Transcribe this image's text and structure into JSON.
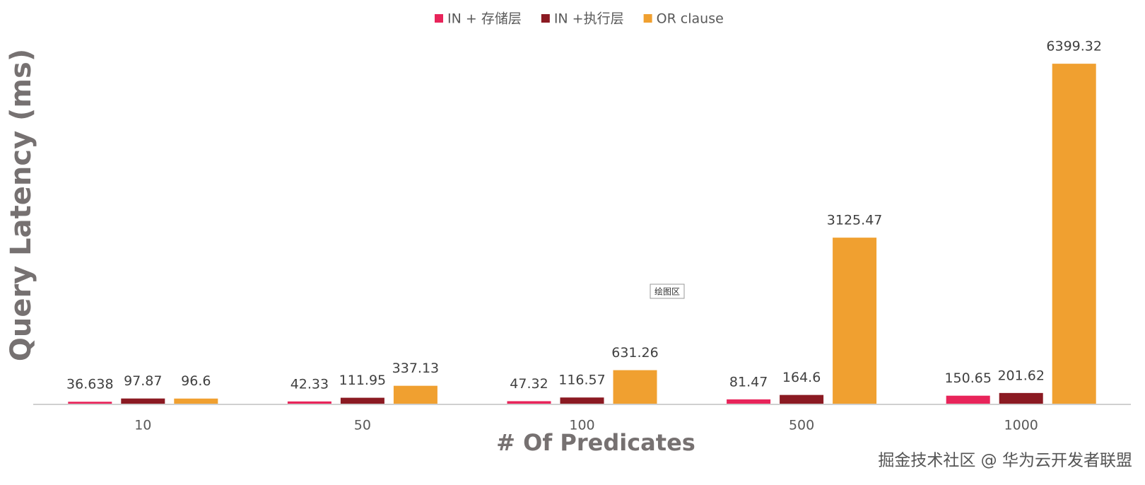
{
  "chart_data": {
    "type": "bar",
    "x_label": "# Of Predicates",
    "y_label": "Query Latency (ms)",
    "annotation": "绘图区",
    "watermark": "掘金技术社区 @ 华为云开发者联盟",
    "categories": [
      "10",
      "50",
      "100",
      "500",
      "1000"
    ],
    "series": [
      {
        "name": "IN + 存储层",
        "color": "#e8245a",
        "values": [
          36.638,
          42.33,
          47.32,
          81.47,
          150.65
        ]
      },
      {
        "name": "IN +执行层",
        "color": "#8b1a22",
        "values": [
          97.87,
          111.95,
          116.57,
          164.6,
          201.62
        ]
      },
      {
        "name": "OR clause",
        "color": "#f0a030",
        "values": [
          96.6,
          337.13,
          631.26,
          3125.47,
          6399.32
        ]
      }
    ],
    "ylim": [
      0,
      7000
    ],
    "legend": "top"
  }
}
